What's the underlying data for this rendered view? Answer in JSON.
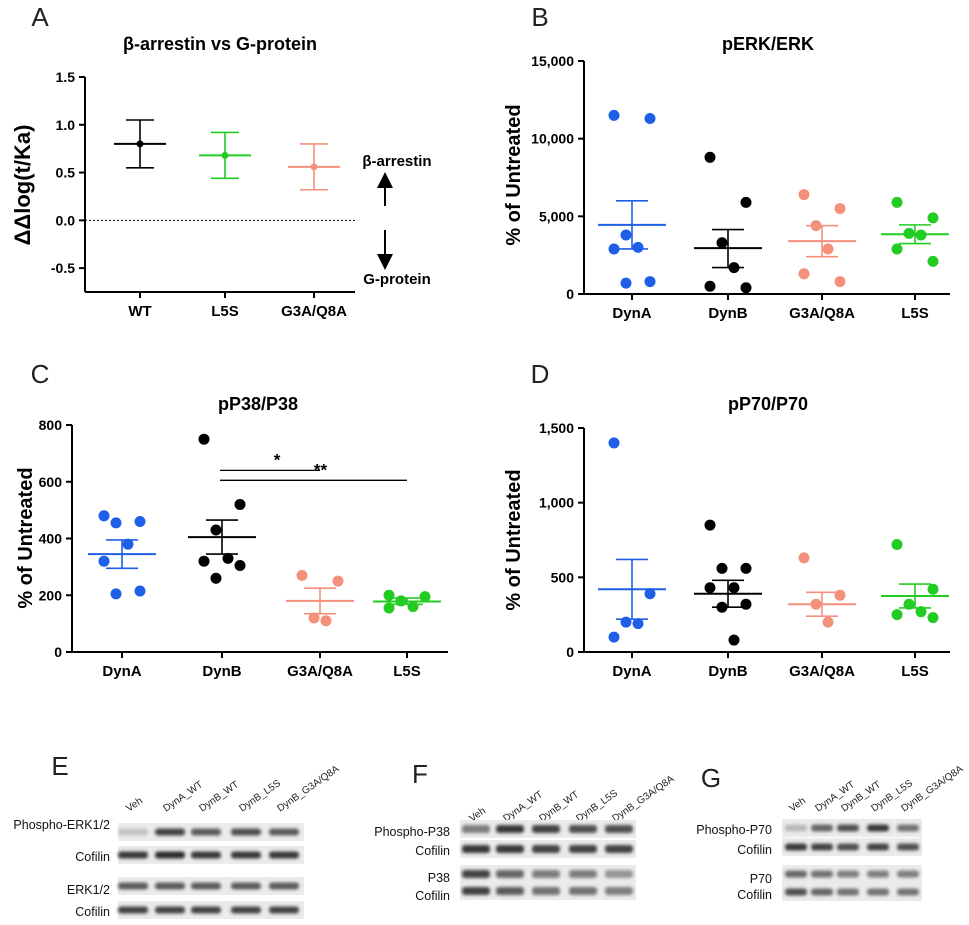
{
  "colors": {
    "DynA": "#1f5fe8",
    "DynB": "#000000",
    "G3A/Q8A": "#f4907c",
    "L5S": "#22cc22",
    "WT": "#000000"
  },
  "chart_data": [
    {
      "panel": "A",
      "type": "scatter",
      "title": "β-arrestin vs G-protein",
      "xlabel": "",
      "ylabel": "ΔΔlog(t/Ka)",
      "ylim": [
        -0.75,
        1.5
      ],
      "yticks": [
        -0.5,
        0.0,
        0.5,
        1.0,
        1.5
      ],
      "ytick_labels": [
        "-0.5",
        "0.0",
        "0.5",
        "1.0",
        "1.5"
      ],
      "reference_line": 0.0,
      "categories": [
        "WT",
        "L5S",
        "G3A/Q8A"
      ],
      "series": [
        {
          "name": "WT",
          "mean": 0.8,
          "ci_low": 0.55,
          "ci_high": 1.05
        },
        {
          "name": "L5S",
          "mean": 0.68,
          "ci_low": 0.44,
          "ci_high": 0.92
        },
        {
          "name": "G3A/Q8A",
          "mean": 0.56,
          "ci_low": 0.32,
          "ci_high": 0.8
        }
      ],
      "annotations": {
        "top": "β-arrestin",
        "bottom": "G-protein"
      }
    },
    {
      "panel": "B",
      "type": "scatter",
      "title": "pERK/ERK",
      "ylabel": "% of Untreated",
      "ylim": [
        0,
        15000
      ],
      "yticks": [
        0,
        5000,
        10000,
        15000
      ],
      "ytick_labels": [
        "0",
        "5,000",
        "10,000",
        "15,000"
      ],
      "categories": [
        "DynA",
        "DynB",
        "G3A/Q8A",
        "L5S"
      ],
      "series": [
        {
          "name": "DynA",
          "points": [
            11500,
            11300,
            3800,
            3000,
            2900,
            800,
            700
          ],
          "mean": 4450,
          "sem_low": 2900,
          "sem_high": 6000
        },
        {
          "name": "DynB",
          "points": [
            8800,
            5900,
            3300,
            1700,
            500,
            400
          ],
          "mean": 2950,
          "sem_low": 1700,
          "sem_high": 4150
        },
        {
          "name": "G3A/Q8A",
          "points": [
            6400,
            5500,
            4400,
            2900,
            1300,
            800
          ],
          "mean": 3400,
          "sem_low": 2400,
          "sem_high": 4400
        },
        {
          "name": "L5S",
          "points": [
            5900,
            4900,
            3900,
            3800,
            2900,
            2100
          ],
          "mean": 3850,
          "sem_low": 3250,
          "sem_high": 4450
        }
      ]
    },
    {
      "panel": "C",
      "type": "scatter",
      "title": "pP38/P38",
      "ylabel": "% of Untreated",
      "ylim": [
        0,
        800
      ],
      "yticks": [
        0,
        200,
        400,
        600,
        800
      ],
      "ytick_labels": [
        "0",
        "200",
        "400",
        "600",
        "800"
      ],
      "categories": [
        "DynA",
        "DynB",
        "G3A/Q8A",
        "L5S"
      ],
      "series": [
        {
          "name": "DynA",
          "points": [
            480,
            460,
            455,
            380,
            320,
            215,
            205
          ],
          "mean": 345,
          "sem_low": 295,
          "sem_high": 395
        },
        {
          "name": "DynB",
          "points": [
            750,
            520,
            430,
            330,
            320,
            305,
            260
          ],
          "mean": 405,
          "sem_low": 345,
          "sem_high": 465
        },
        {
          "name": "G3A/Q8A",
          "points": [
            270,
            250,
            120,
            110
          ],
          "mean": 180,
          "sem_low": 135,
          "sem_high": 225
        },
        {
          "name": "L5S",
          "points": [
            200,
            195,
            180,
            160,
            155
          ],
          "mean": 178,
          "sem_low": 168,
          "sem_high": 190
        }
      ],
      "significance": [
        {
          "from": "DynB",
          "to": "G3A/Q8A",
          "label": "*",
          "y": 640
        },
        {
          "from": "DynB",
          "to": "L5S",
          "label": "**",
          "y": 605
        }
      ]
    },
    {
      "panel": "D",
      "type": "scatter",
      "title": "pP70/P70",
      "ylabel": "% of Untreated",
      "ylim": [
        0,
        1500
      ],
      "yticks": [
        0,
        500,
        1000,
        1500
      ],
      "ytick_labels": [
        "0",
        "500",
        "1,000",
        "1,500"
      ],
      "categories": [
        "DynA",
        "DynB",
        "G3A/Q8A",
        "L5S"
      ],
      "series": [
        {
          "name": "DynA",
          "points": [
            1400,
            390,
            200,
            190,
            100
          ],
          "mean": 420,
          "sem_low": 220,
          "sem_high": 620
        },
        {
          "name": "DynB",
          "points": [
            850,
            560,
            560,
            430,
            430,
            320,
            300,
            80
          ],
          "mean": 390,
          "sem_low": 300,
          "sem_high": 480
        },
        {
          "name": "G3A/Q8A",
          "points": [
            630,
            380,
            320,
            200
          ],
          "mean": 320,
          "sem_low": 240,
          "sem_high": 400
        },
        {
          "name": "L5S",
          "points": [
            720,
            420,
            320,
            270,
            250,
            230
          ],
          "mean": 375,
          "sem_low": 295,
          "sem_high": 455
        }
      ]
    }
  ],
  "blots": [
    {
      "panel": "E",
      "lanes": [
        "Veh",
        "DynA_WT",
        "DynB_WT",
        "DynB_L5S",
        "DynB_G3A/Q8A"
      ],
      "rows": [
        {
          "label": "Phospho-ERK1/2",
          "intensity": [
            0.25,
            0.8,
            0.7,
            0.75,
            0.7
          ]
        },
        {
          "label": "Cofilin",
          "intensity": [
            0.85,
            0.9,
            0.85,
            0.85,
            0.85
          ]
        },
        {
          "label": "ERK1/2",
          "intensity": [
            0.7,
            0.7,
            0.7,
            0.7,
            0.7
          ]
        },
        {
          "label": "Cofilin",
          "intensity": [
            0.8,
            0.8,
            0.8,
            0.8,
            0.8
          ]
        }
      ]
    },
    {
      "panel": "F",
      "lanes": [
        "Veh",
        "DynA_WT",
        "DynB_WT",
        "DynB_L5S",
        "DynB_G3A/Q8A"
      ],
      "rows": [
        {
          "label": "Phospho-P38",
          "intensity": [
            0.55,
            0.85,
            0.8,
            0.75,
            0.75
          ]
        },
        {
          "label": "Cofilin",
          "intensity": [
            0.85,
            0.85,
            0.8,
            0.8,
            0.8
          ]
        },
        {
          "label": "P38",
          "intensity": [
            0.8,
            0.65,
            0.55,
            0.55,
            0.45
          ]
        },
        {
          "label": "Cofilin",
          "intensity": [
            0.8,
            0.7,
            0.6,
            0.6,
            0.55
          ]
        }
      ]
    },
    {
      "panel": "G",
      "lanes": [
        "Veh",
        "DynA_WT",
        "DynB_WT",
        "DynB_L5S",
        "DynB_G3A/Q8A"
      ],
      "rows": [
        {
          "label": "Phospho-P70",
          "intensity": [
            0.3,
            0.65,
            0.75,
            0.85,
            0.6
          ]
        },
        {
          "label": "Cofilin",
          "intensity": [
            0.85,
            0.8,
            0.75,
            0.8,
            0.75
          ]
        },
        {
          "label": "P70",
          "intensity": [
            0.65,
            0.6,
            0.55,
            0.55,
            0.55
          ]
        },
        {
          "label": "Cofilin",
          "intensity": [
            0.75,
            0.65,
            0.6,
            0.6,
            0.6
          ]
        }
      ]
    }
  ]
}
